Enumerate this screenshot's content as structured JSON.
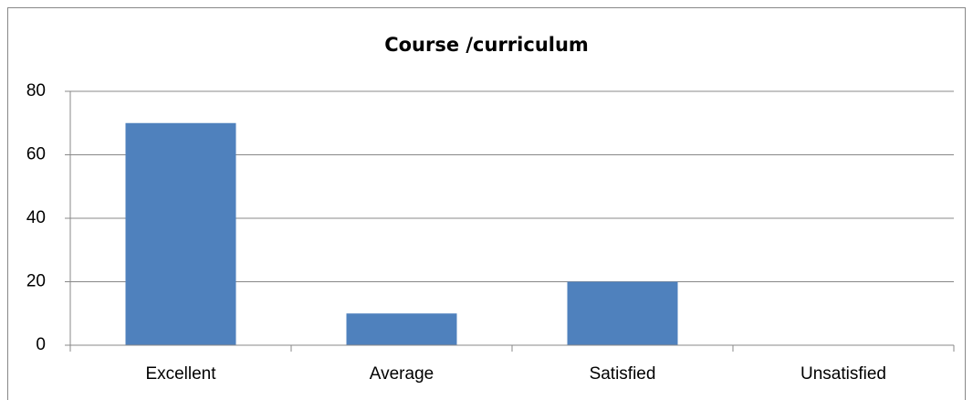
{
  "chart_data": {
    "type": "bar",
    "title": "Course /curriculum",
    "categories": [
      "Excellent",
      "Average",
      "Satisfied",
      "Unsatisfied"
    ],
    "values": [
      70,
      10,
      20,
      0
    ],
    "color": "#4f81bd",
    "ylim": [
      0,
      80
    ],
    "yticks": [
      0,
      20,
      40,
      60,
      80
    ],
    "grid": true
  }
}
